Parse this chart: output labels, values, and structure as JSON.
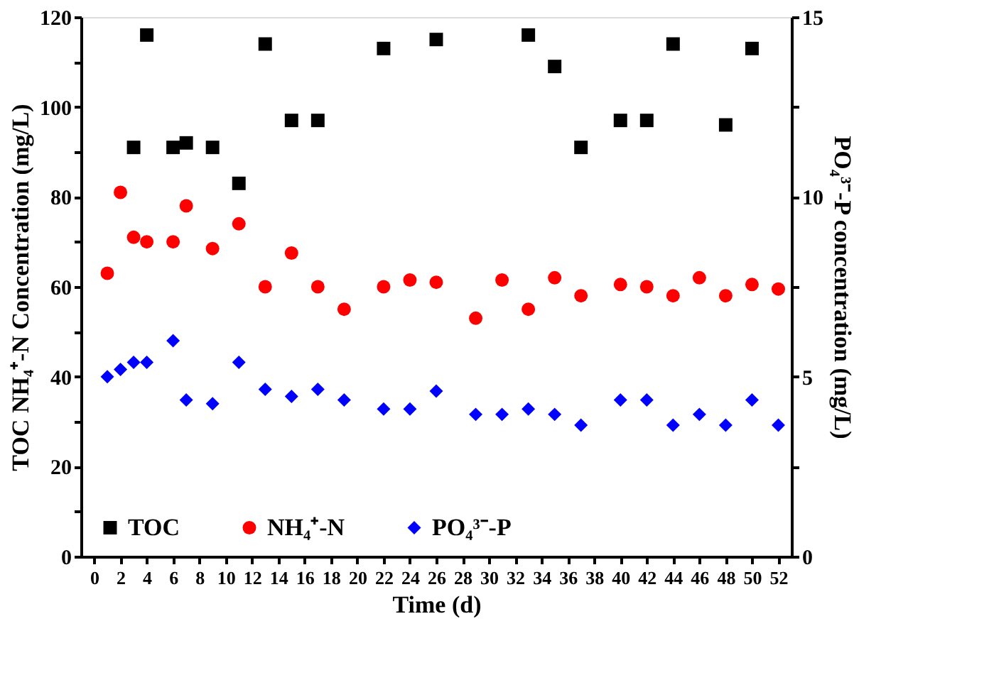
{
  "chart_data": {
    "type": "scatter",
    "xlabel": "Time (d)",
    "ylabel": "TOC NH₄⁺-N Concentration (mg/L)",
    "y2label": "PO₄³⁻-P concentration (mg/L)",
    "xlim": [
      -1,
      53
    ],
    "xticks": [
      0,
      2,
      4,
      6,
      8,
      10,
      12,
      14,
      16,
      18,
      20,
      22,
      24,
      26,
      28,
      30,
      32,
      34,
      36,
      38,
      40,
      42,
      44,
      46,
      48,
      50,
      52
    ],
    "ylim": [
      0,
      120
    ],
    "yticks": [
      0,
      {
        "value": 10,
        "label": null
      },
      20,
      {
        "value": 30,
        "label": null
      },
      40,
      {
        "value": 50,
        "label": null
      },
      60,
      {
        "value": 70,
        "label": null
      },
      80,
      {
        "value": 90,
        "label": null
      },
      100,
      {
        "value": 110,
        "label": null
      },
      120
    ],
    "y2lim": [
      0,
      15
    ],
    "y2ticks": [
      0,
      {
        "value": 2.5,
        "label": null
      },
      5,
      {
        "value": 7.5,
        "label": null
      },
      10,
      {
        "value": 12.5,
        "label": null
      },
      15
    ],
    "legend": "bottom left",
    "grid": false,
    "series": [
      {
        "name": "TOC",
        "color": "#000000",
        "marker": "square",
        "x": [
          3,
          4,
          6,
          7,
          9,
          11,
          13,
          15,
          17,
          22,
          26,
          33,
          35,
          37,
          40,
          42,
          44,
          48,
          50
        ],
        "values": [
          91,
          116,
          91,
          92,
          91,
          83,
          114,
          97,
          97,
          113,
          115,
          116,
          109,
          91,
          97,
          97,
          114,
          96,
          113
        ]
      },
      {
        "name": "NH₄⁺-N",
        "color": "#ff0000",
        "marker": "circle",
        "x": [
          1,
          2,
          3,
          4,
          6,
          7,
          9,
          11,
          13,
          15,
          17,
          19,
          22,
          24,
          26,
          29,
          31,
          33,
          35,
          37,
          40,
          42,
          44,
          46,
          48,
          50,
          52
        ],
        "values": [
          63,
          81,
          71,
          70,
          70,
          78,
          68.5,
          74,
          60,
          67.5,
          60,
          55,
          60,
          61.5,
          61,
          53,
          61.5,
          55,
          62,
          58,
          60.5,
          60,
          58,
          62,
          58,
          60.5,
          59.5
        ]
      },
      {
        "name": "PO₄³⁻-P",
        "color": "#0000ff",
        "marker": "diamond",
        "axis": "y2",
        "x": [
          1,
          2,
          3,
          4,
          6,
          7,
          9,
          11,
          13,
          15,
          17,
          19,
          22,
          24,
          26,
          29,
          31,
          33,
          35,
          37,
          40,
          42,
          44,
          46,
          48,
          50,
          52
        ],
        "values": [
          5.0,
          5.2,
          5.4,
          5.4,
          6.0,
          4.35,
          4.25,
          5.4,
          4.65,
          4.45,
          4.65,
          4.35,
          4.1,
          4.1,
          4.6,
          3.95,
          3.95,
          4.1,
          3.95,
          3.65,
          4.35,
          4.35,
          3.65,
          3.95,
          3.65,
          4.35,
          3.65
        ]
      }
    ]
  }
}
